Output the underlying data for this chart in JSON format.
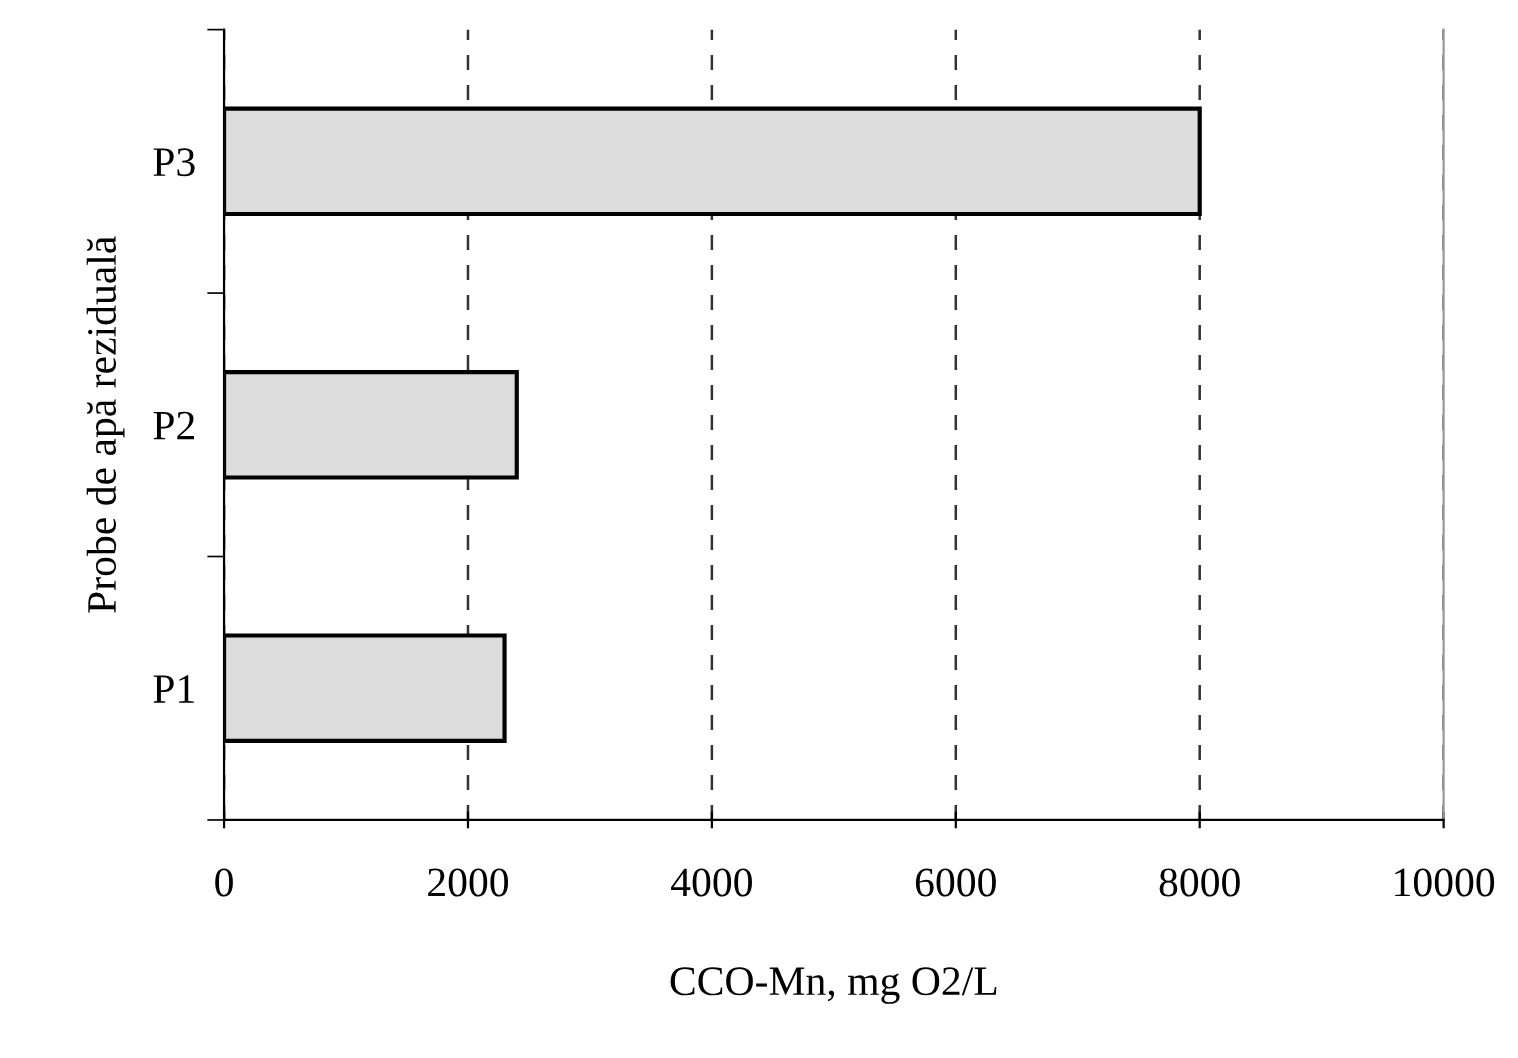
{
  "chart_data": {
    "type": "bar",
    "orientation": "horizontal",
    "categories": [
      "P3",
      "P2",
      "P1"
    ],
    "values": [
      8000,
      2400,
      2300
    ],
    "color": "#dcdcdc",
    "xlim": [
      0,
      10000
    ],
    "xticks": [
      0,
      2000,
      4000,
      6000,
      8000,
      10000
    ],
    "xlabel": "CCO-Mn, mg O2/L",
    "ylabel": "Probe de apă reziduală",
    "grid": "x",
    "legend": false
  }
}
